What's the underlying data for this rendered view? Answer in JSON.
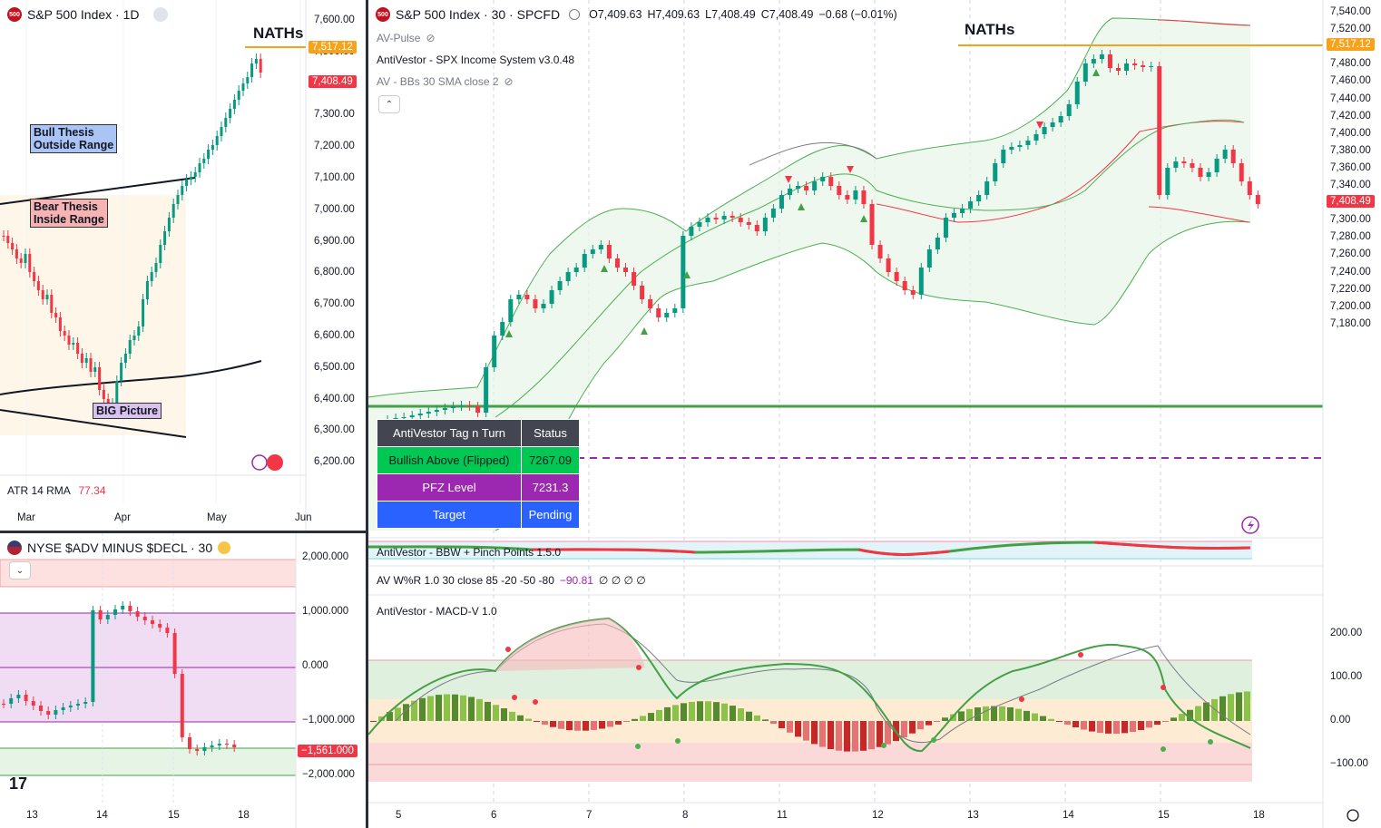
{
  "left_top": {
    "symbol_badge": "500",
    "title": "S&P 500 Index · 1D",
    "naths_label": "NATHs",
    "price_tag_high": "7,517.12",
    "price_tag_last": "7,408.49",
    "y_ticks": [
      "7,600.00",
      "7,500.00",
      "7,400.00",
      "7,300.00",
      "7,200.00",
      "7,100.00",
      "7,000.00",
      "6,900.00",
      "6,800.00",
      "6,700.00",
      "6,600.00",
      "6,500.00",
      "6,400.00",
      "6,300.00",
      "6,200.00"
    ],
    "bull_box": "Bull Thesis Outside Range",
    "bull_box_line1": "Bull Thesis",
    "bull_box_line2": "Outside Range",
    "bear_box_line1": "Bear Thesis",
    "bear_box_line2": "Inside Range",
    "big_picture": "BIG Picture",
    "atr_label": "ATR 14 RMA",
    "atr_value": "77.34",
    "x_ticks": [
      "Mar",
      "Apr",
      "May",
      "Jun"
    ]
  },
  "left_bottom": {
    "title": "NYSE $ADV MINUS $DECL · 30",
    "y_ticks": [
      "2,000.000",
      "1,000.000",
      "0.000",
      "−1,000.000",
      "−2,000.000"
    ],
    "price_tag": "−1,561.000",
    "x_ticks": [
      "13",
      "14",
      "15",
      "18"
    ]
  },
  "main": {
    "symbol_badge": "500",
    "title": "S&P 500 Index · 30 · SPCFD",
    "ohlc": {
      "o": "O7,409.63",
      "h": "H7,409.63",
      "l": "L7,408.49",
      "c": "C7,408.49",
      "chg": "−0.68 (−0.01%)"
    },
    "indicators": {
      "pulse": "AV-Pulse",
      "income": "AntiVestor - SPX Income System v3.0.48",
      "bbs": "AV - BBs 30 SMA close 2"
    },
    "naths_label": "NATHs",
    "price_tag_high": "7,517.12",
    "price_tag_last": "7,408.49",
    "y_ticks": [
      "7,540.00",
      "7,520.00",
      "7,500.00",
      "7,480.00",
      "7,460.00",
      "7,440.00",
      "7,420.00",
      "7,400.00",
      "7,380.00",
      "7,360.00",
      "7,340.00",
      "7,320.00",
      "7,300.00",
      "7,280.00",
      "7,260.00",
      "7,240.00",
      "7,220.00",
      "7,200.00",
      "7,180.00"
    ],
    "table": {
      "header": [
        "AntiVestor Tag n Turn",
        "Status"
      ],
      "rows": [
        {
          "label": "Bullish Above (Flipped)",
          "value": "7267.09"
        },
        {
          "label": "PFZ Level",
          "value": "7231.3"
        },
        {
          "label": "Target",
          "value": "Pending"
        }
      ]
    },
    "bbw_label": "AntiVestor - BBW + Pinch Points 1.5.0",
    "wr_label": "AV W%R 1.0 30 close 85 -20 -50 -80",
    "wr_value": "−90.81",
    "wr_extra": "∅ ∅ ∅ ∅",
    "macd_label": "AntiVestor - MACD-V 1.0",
    "macd_ticks": [
      "200.00",
      "100.00",
      "0.00",
      "−100.00"
    ],
    "x_ticks": [
      "5",
      "6",
      "7",
      "8",
      "11",
      "12",
      "13",
      "14",
      "15",
      "18"
    ]
  },
  "colors": {
    "up": "#26a69a",
    "down": "#ef5350",
    "candle_up": "#089981",
    "candle_down": "#f23645",
    "orange": "#f7a21b",
    "red_tag": "#f23645",
    "green_line": "#43a047",
    "purple": "#9c27b0"
  }
}
